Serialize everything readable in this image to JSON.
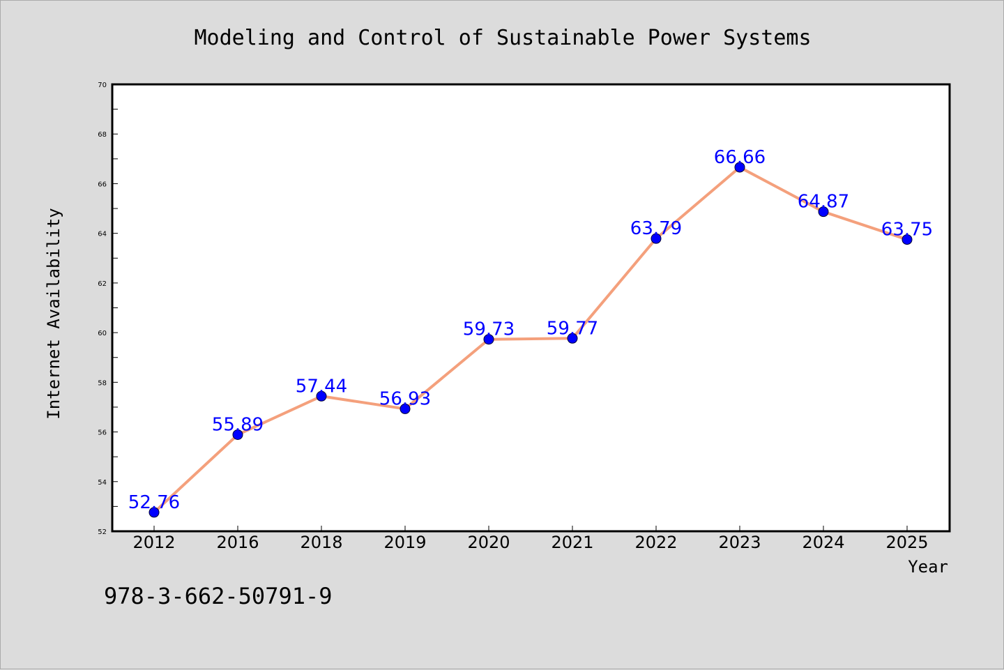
{
  "chart_data": {
    "type": "line",
    "title": "Modeling and Control of Sustainable Power Systems",
    "xlabel": "Year",
    "ylabel": "Internet Availability",
    "categories": [
      "2012",
      "2016",
      "2018",
      "2019",
      "2020",
      "2021",
      "2022",
      "2023",
      "2024",
      "2025"
    ],
    "values": [
      52.76,
      55.89,
      57.44,
      56.93,
      59.73,
      59.77,
      63.79,
      66.66,
      64.87,
      63.75
    ],
    "data_labels": [
      "52.76",
      "55.89",
      "57.44",
      "56.93",
      "59.73",
      "59.77",
      "63.79",
      "66.66",
      "64.87",
      "63.75"
    ],
    "ylim": [
      52,
      70
    ],
    "yticks": [
      "52",
      "54",
      "56",
      "58",
      "60",
      "62",
      "64",
      "66",
      "68",
      "70"
    ],
    "grid": false,
    "line_color": "#f4a07c",
    "marker_color": "#0000ff",
    "label_color": "#0000ff"
  },
  "footer": {
    "isbn": "978-3-662-50791-9"
  }
}
